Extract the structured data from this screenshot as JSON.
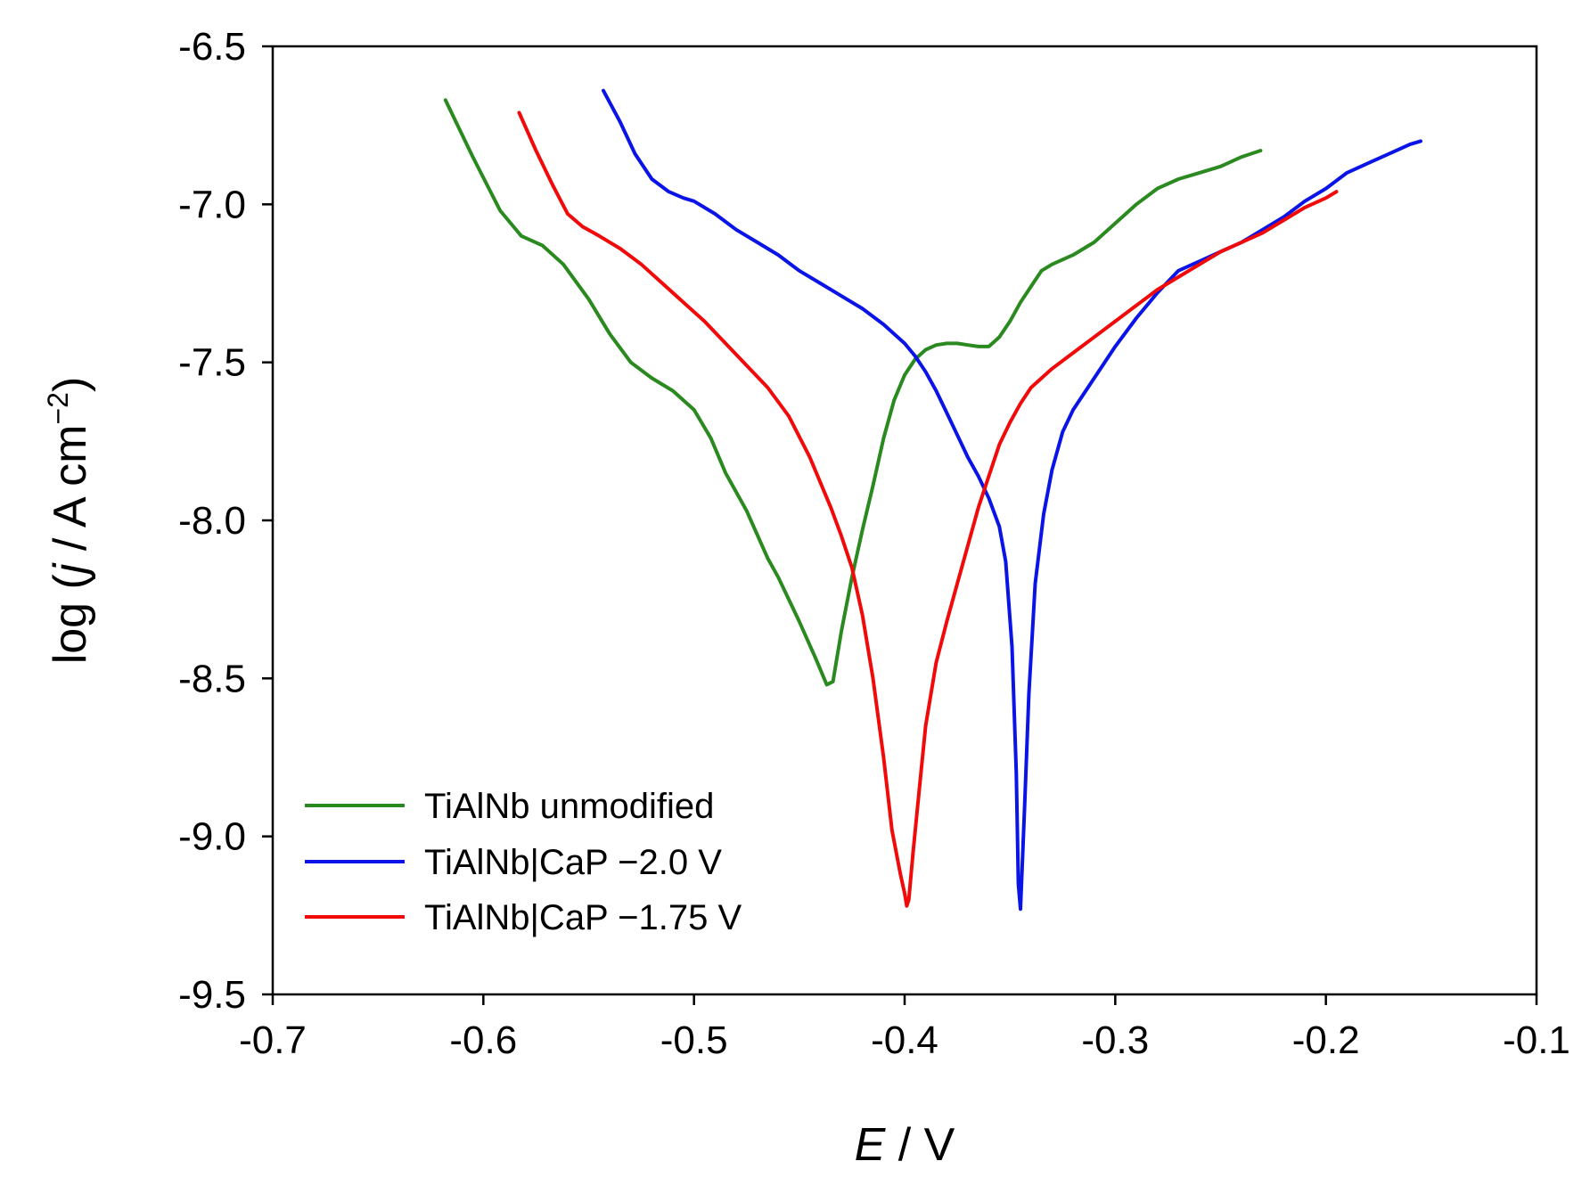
{
  "chart_data": {
    "type": "line",
    "title": "",
    "xlabel": {
      "symbol": "E",
      "sep": " / ",
      "unit": "V"
    },
    "ylabel": {
      "prefix": "log (",
      "symbol": "j",
      "sep": " / ",
      "unit": "A cm",
      "exp": "−2",
      "suffix": ")"
    },
    "xlim": [
      -0.7,
      -0.1
    ],
    "ylim": [
      -9.5,
      -6.5
    ],
    "xticks": [
      -0.7,
      -0.6,
      -0.5,
      -0.4,
      -0.3,
      -0.2,
      -0.1
    ],
    "xtick_labels": [
      "-0.7",
      "-0.6",
      "-0.5",
      "-0.4",
      "-0.3",
      "-0.2",
      "-0.1"
    ],
    "yticks": [
      -6.5,
      -7.0,
      -7.5,
      -8.0,
      -8.5,
      -9.0,
      -9.5
    ],
    "ytick_labels": [
      "-6.5",
      "-7.0",
      "-7.5",
      "-8.0",
      "-8.5",
      "-9.0",
      "-9.5"
    ],
    "grid": false,
    "legend_position": "bottom-left",
    "series": [
      {
        "name": "TiAlNb unmodified",
        "color": "#2a8a1f",
        "x": [
          -0.618,
          -0.605,
          -0.592,
          -0.582,
          -0.572,
          -0.562,
          -0.55,
          -0.54,
          -0.53,
          -0.52,
          -0.51,
          -0.5,
          -0.492,
          -0.485,
          -0.475,
          -0.465,
          -0.46,
          -0.45,
          -0.442,
          -0.437,
          -0.434,
          -0.43,
          -0.425,
          -0.42,
          -0.415,
          -0.41,
          -0.405,
          -0.4,
          -0.395,
          -0.39,
          -0.385,
          -0.38,
          -0.375,
          -0.37,
          -0.365,
          -0.36,
          -0.355,
          -0.35,
          -0.345,
          -0.34,
          -0.335,
          -0.33,
          -0.32,
          -0.31,
          -0.3,
          -0.29,
          -0.28,
          -0.27,
          -0.26,
          -0.25,
          -0.24,
          -0.231
        ],
        "y": [
          -6.67,
          -6.85,
          -7.02,
          -7.1,
          -7.13,
          -7.19,
          -7.3,
          -7.41,
          -7.5,
          -7.55,
          -7.59,
          -7.65,
          -7.74,
          -7.85,
          -7.97,
          -8.12,
          -8.18,
          -8.32,
          -8.44,
          -8.52,
          -8.51,
          -8.35,
          -8.18,
          -8.03,
          -7.89,
          -7.74,
          -7.62,
          -7.54,
          -7.49,
          -7.46,
          -7.445,
          -7.44,
          -7.44,
          -7.445,
          -7.45,
          -7.45,
          -7.42,
          -7.37,
          -7.31,
          -7.26,
          -7.21,
          -7.19,
          -7.16,
          -7.12,
          -7.06,
          -7.0,
          -6.95,
          -6.92,
          -6.9,
          -6.88,
          -6.85,
          -6.83
        ]
      },
      {
        "name": "TiAlNb|CaP −2.0 V",
        "color": "#0a14e6",
        "x": [
          -0.543,
          -0.535,
          -0.528,
          -0.52,
          -0.512,
          -0.505,
          -0.5,
          -0.49,
          -0.48,
          -0.47,
          -0.46,
          -0.45,
          -0.44,
          -0.43,
          -0.42,
          -0.41,
          -0.4,
          -0.395,
          -0.39,
          -0.385,
          -0.38,
          -0.375,
          -0.37,
          -0.365,
          -0.36,
          -0.355,
          -0.352,
          -0.349,
          -0.347,
          -0.346,
          -0.345,
          -0.343,
          -0.341,
          -0.338,
          -0.334,
          -0.33,
          -0.325,
          -0.32,
          -0.315,
          -0.31,
          -0.3,
          -0.29,
          -0.28,
          -0.27,
          -0.26,
          -0.25,
          -0.24,
          -0.23,
          -0.22,
          -0.21,
          -0.2,
          -0.19,
          -0.18,
          -0.17,
          -0.16,
          -0.155
        ],
        "y": [
          -6.64,
          -6.74,
          -6.84,
          -6.92,
          -6.96,
          -6.98,
          -6.99,
          -7.03,
          -7.08,
          -7.12,
          -7.16,
          -7.21,
          -7.25,
          -7.29,
          -7.33,
          -7.38,
          -7.44,
          -7.48,
          -7.53,
          -7.59,
          -7.66,
          -7.73,
          -7.8,
          -7.86,
          -7.93,
          -8.02,
          -8.13,
          -8.4,
          -8.8,
          -9.15,
          -9.23,
          -8.9,
          -8.55,
          -8.2,
          -7.98,
          -7.84,
          -7.72,
          -7.65,
          -7.6,
          -7.55,
          -7.45,
          -7.36,
          -7.28,
          -7.21,
          -7.18,
          -7.15,
          -7.12,
          -7.08,
          -7.04,
          -6.99,
          -6.95,
          -6.9,
          -6.87,
          -6.84,
          -6.81,
          -6.8
        ]
      },
      {
        "name": "TiAlNb|CaP −1.75 V",
        "color": "#f00a0a",
        "x": [
          -0.583,
          -0.575,
          -0.567,
          -0.56,
          -0.553,
          -0.545,
          -0.535,
          -0.525,
          -0.515,
          -0.505,
          -0.495,
          -0.485,
          -0.475,
          -0.465,
          -0.455,
          -0.445,
          -0.435,
          -0.43,
          -0.425,
          -0.42,
          -0.415,
          -0.41,
          -0.406,
          -0.402,
          -0.4,
          -0.399,
          -0.398,
          -0.396,
          -0.393,
          -0.39,
          -0.385,
          -0.38,
          -0.375,
          -0.37,
          -0.365,
          -0.36,
          -0.355,
          -0.35,
          -0.345,
          -0.34,
          -0.33,
          -0.32,
          -0.31,
          -0.3,
          -0.29,
          -0.28,
          -0.27,
          -0.26,
          -0.25,
          -0.24,
          -0.23,
          -0.22,
          -0.21,
          -0.2,
          -0.195
        ],
        "y": [
          -6.71,
          -6.83,
          -6.94,
          -7.03,
          -7.07,
          -7.1,
          -7.14,
          -7.19,
          -7.25,
          -7.31,
          -7.37,
          -7.44,
          -7.51,
          -7.58,
          -7.67,
          -7.8,
          -7.96,
          -8.05,
          -8.15,
          -8.3,
          -8.5,
          -8.75,
          -8.98,
          -9.12,
          -9.18,
          -9.22,
          -9.2,
          -9.05,
          -8.85,
          -8.65,
          -8.45,
          -8.32,
          -8.2,
          -8.08,
          -7.96,
          -7.86,
          -7.76,
          -7.69,
          -7.63,
          -7.58,
          -7.52,
          -7.47,
          -7.42,
          -7.37,
          -7.32,
          -7.27,
          -7.23,
          -7.19,
          -7.15,
          -7.12,
          -7.09,
          -7.05,
          -7.01,
          -6.98,
          -6.96
        ]
      }
    ]
  }
}
